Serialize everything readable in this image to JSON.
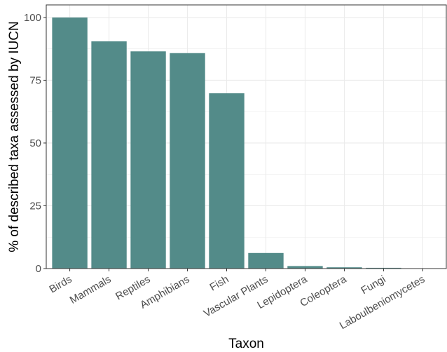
{
  "chart_data": {
    "type": "bar",
    "categories": [
      "Birds",
      "Mammals",
      "Reptiles",
      "Amphibians",
      "Fish",
      "Vascular Plants",
      "Lepidoptera",
      "Coleoptera",
      "Fungi",
      "Laboulbeniomycetes"
    ],
    "values": [
      100,
      90.5,
      86.5,
      85.8,
      69.8,
      6.2,
      1.0,
      0.5,
      0.3,
      0
    ],
    "xlabel": "Taxon",
    "ylabel": "% of described taxa assessed by IUCN",
    "ylim": [
      0,
      105
    ],
    "yticks": [
      0,
      25,
      50,
      75,
      100
    ],
    "grid": true,
    "bar_color": "#538b89",
    "grid_color": "#ebebeb",
    "panel_border_color": "#333333"
  }
}
